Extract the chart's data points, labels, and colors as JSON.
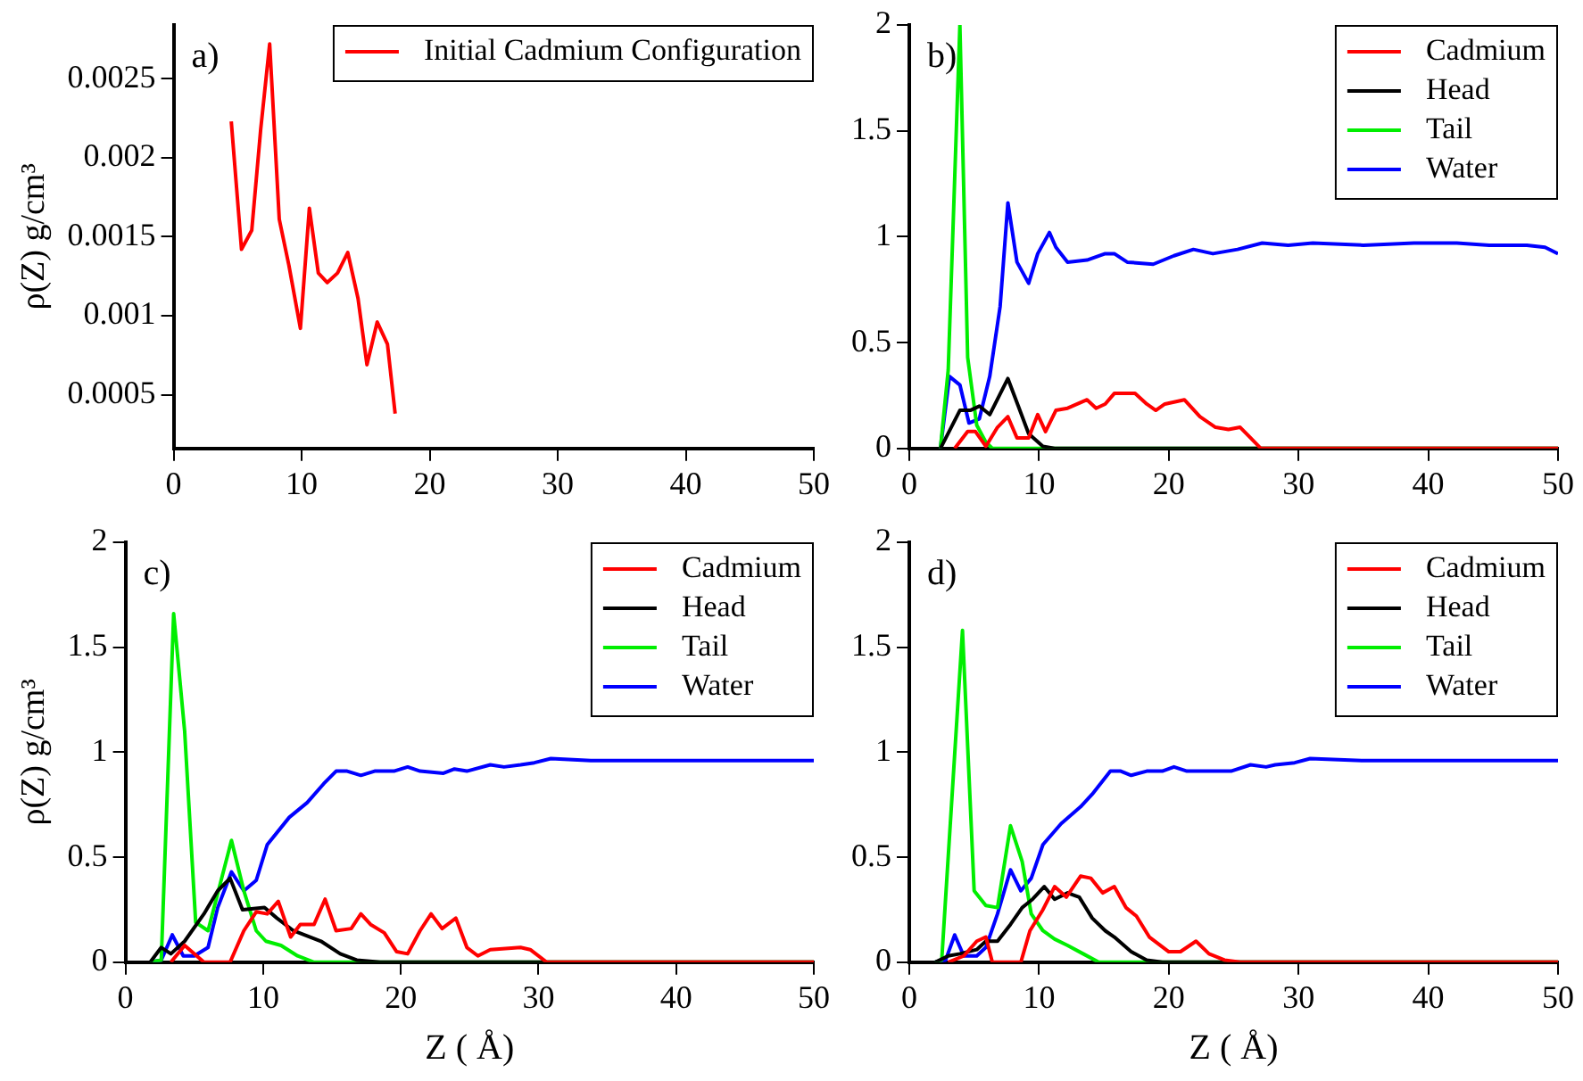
{
  "chart_data": [
    {
      "type": "line",
      "ylabel": "ρ(Z) g/cm³",
      "annotations": [
        "a)"
      ],
      "legend": "top right",
      "grid": false,
      "marker": "none",
      "xlim": [
        0,
        50
      ],
      "xticks": [
        0,
        10,
        20,
        30,
        40,
        50
      ],
      "ylim": [
        0.00016,
        0.00284
      ],
      "yticks": [
        0.0005,
        0.001,
        0.0015,
        0.002,
        0.0025
      ],
      "series": [
        {
          "name": "Initial Cadmium Configuration",
          "color": "#ff0000",
          "x": [
            4.5,
            5.3,
            6.1,
            6.8,
            7.5,
            8.25,
            9.0,
            9.9,
            10.6,
            11.3,
            12.0,
            12.8,
            13.6,
            14.4,
            15.1,
            15.9,
            16.7,
            17.3
          ],
          "values": [
            0.00223,
            0.00142,
            0.00154,
            0.00218,
            0.00272,
            0.00161,
            0.00132,
            0.00092,
            0.00168,
            0.00127,
            0.00121,
            0.00127,
            0.0014,
            0.00111,
            0.00069,
            0.00096,
            0.00082,
            0.00038
          ]
        }
      ]
    },
    {
      "type": "line",
      "annotations": [
        "b)"
      ],
      "legend": "top right",
      "grid": false,
      "marker": "none",
      "xlim": [
        0,
        50
      ],
      "xticks": [
        0,
        10,
        20,
        30,
        40,
        50
      ],
      "ylim": [
        0,
        2
      ],
      "yticks": [
        0,
        0.5,
        1,
        1.5,
        2
      ],
      "series": [
        {
          "name": "Cadmium",
          "color": "#ff0000",
          "x": [
            3.5,
            4.5,
            5.1,
            5.9,
            6.8,
            7.6,
            8.3,
            9.2,
            9.9,
            10.5,
            11.3,
            12.2,
            13.7,
            14.4,
            15.1,
            15.8,
            17.4,
            18.3,
            19.0,
            19.7,
            21.2,
            22.4,
            23.6,
            24.6,
            25.5,
            26.3,
            27.1,
            50
          ],
          "values": [
            0,
            0.08,
            0.08,
            0.01,
            0.1,
            0.15,
            0.05,
            0.05,
            0.16,
            0.08,
            0.18,
            0.19,
            0.23,
            0.19,
            0.21,
            0.26,
            0.26,
            0.21,
            0.18,
            0.21,
            0.23,
            0.15,
            0.1,
            0.09,
            0.1,
            0.05,
            0,
            0
          ]
        },
        {
          "name": "Head",
          "color": "#000000",
          "x": [
            2.4,
            3.9,
            4.7,
            5.4,
            6.2,
            7.6,
            8.4,
            9.2,
            10.3,
            11.2,
            50
          ],
          "values": [
            0,
            0.18,
            0.18,
            0.2,
            0.16,
            0.33,
            0.2,
            0.07,
            0.01,
            0,
            0
          ]
        },
        {
          "name": "Tail",
          "color": "#00ee00",
          "x": [
            2.4,
            3.0,
            3.9,
            4.5,
            5.2,
            5.9,
            6.4,
            50
          ],
          "values": [
            0,
            0.37,
            2.0,
            0.43,
            0.11,
            0.03,
            0,
            0
          ]
        },
        {
          "name": "Water",
          "color": "#0000ff",
          "x": [
            2.4,
            3.1,
            3.9,
            4.6,
            5.4,
            6.2,
            7.0,
            7.6,
            8.3,
            9.2,
            9.9,
            10.8,
            11.3,
            12.2,
            13.7,
            15.1,
            15.8,
            16.8,
            18.8,
            20.4,
            21.9,
            23.4,
            25.3,
            27.2,
            29.2,
            31.1,
            35,
            38.9,
            42.2,
            44.7,
            47.6,
            49,
            50
          ],
          "values": [
            0,
            0.34,
            0.3,
            0.12,
            0.14,
            0.34,
            0.67,
            1.16,
            0.88,
            0.78,
            0.92,
            1.02,
            0.95,
            0.88,
            0.89,
            0.92,
            0.92,
            0.88,
            0.87,
            0.91,
            0.94,
            0.92,
            0.94,
            0.97,
            0.96,
            0.97,
            0.96,
            0.97,
            0.97,
            0.96,
            0.96,
            0.95,
            0.92
          ]
        }
      ]
    },
    {
      "type": "line",
      "xlabel": "Z ( Å)",
      "ylabel": "ρ(Z) g/cm³",
      "annotations": [
        "c)"
      ],
      "legend": "top right",
      "grid": false,
      "marker": "none",
      "xlim": [
        0,
        50
      ],
      "xticks": [
        0,
        10,
        20,
        30,
        40,
        50
      ],
      "ylim": [
        0,
        2
      ],
      "yticks": [
        0,
        0.5,
        1,
        1.5,
        2
      ],
      "series": [
        {
          "name": "Cadmium",
          "color": "#ff0000",
          "x": [
            3.3,
            4.3,
            5.7,
            7.6,
            8.6,
            9.5,
            10.3,
            11.1,
            12.0,
            12.7,
            13.7,
            14.5,
            15.3,
            16.4,
            17.1,
            17.8,
            18.8,
            19.7,
            20.5,
            21.4,
            22.2,
            23.0,
            24.0,
            24.8,
            25.6,
            26.5,
            28.7,
            29.4,
            30.6,
            50
          ],
          "values": [
            0,
            0.08,
            0,
            0,
            0.15,
            0.24,
            0.23,
            0.29,
            0.12,
            0.18,
            0.18,
            0.3,
            0.15,
            0.16,
            0.23,
            0.18,
            0.14,
            0.05,
            0.04,
            0.15,
            0.23,
            0.16,
            0.21,
            0.07,
            0.03,
            0.06,
            0.07,
            0.06,
            0,
            0
          ]
        },
        {
          "name": "Head",
          "color": "#000000",
          "x": [
            1.8,
            2.6,
            3.3,
            4.3,
            5.7,
            6.7,
            7.6,
            8.5,
            10.1,
            11.0,
            12.2,
            14.2,
            15.6,
            16.8,
            18.5,
            50
          ],
          "values": [
            0,
            0.07,
            0.04,
            0.1,
            0.23,
            0.34,
            0.4,
            0.25,
            0.26,
            0.21,
            0.15,
            0.1,
            0.04,
            0.01,
            0,
            0
          ]
        },
        {
          "name": "Tail",
          "color": "#00ee00",
          "x": [
            1.8,
            2.6,
            3.5,
            4.3,
            5.1,
            6.0,
            7.7,
            8.6,
            9.5,
            10.2,
            11.3,
            12.5,
            13.7,
            50
          ],
          "values": [
            0,
            0.01,
            1.66,
            1.1,
            0.19,
            0.15,
            0.58,
            0.34,
            0.15,
            0.1,
            0.08,
            0.03,
            0,
            0
          ]
        },
        {
          "name": "Water",
          "color": "#0000ff",
          "x": [
            1.8,
            2.6,
            3.4,
            4.2,
            5.0,
            6.0,
            6.7,
            7.7,
            8.6,
            9.5,
            10.3,
            11.9,
            13.2,
            14.4,
            15.3,
            16.1,
            17.1,
            18.1,
            19.5,
            20.5,
            21.4,
            23.1,
            23.9,
            24.8,
            26.5,
            27.5,
            28.7,
            29.7,
            30.9,
            33.8,
            36.2,
            38.6,
            41,
            44.4,
            45.9,
            50
          ],
          "values": [
            0,
            0.01,
            0.13,
            0.03,
            0.03,
            0.07,
            0.26,
            0.43,
            0.34,
            0.39,
            0.56,
            0.69,
            0.76,
            0.85,
            0.91,
            0.91,
            0.89,
            0.91,
            0.91,
            0.93,
            0.91,
            0.9,
            0.92,
            0.91,
            0.94,
            0.93,
            0.94,
            0.95,
            0.97,
            0.96,
            0.96,
            0.96,
            0.96,
            0.96,
            0.96,
            0.96
          ]
        }
      ]
    },
    {
      "type": "line",
      "xlabel": "Z ( Å)",
      "annotations": [
        "d)"
      ],
      "legend": "top right",
      "grid": false,
      "marker": "none",
      "xlim": [
        0,
        50
      ],
      "xticks": [
        0,
        10,
        20,
        30,
        40,
        50
      ],
      "ylim": [
        0,
        2
      ],
      "yticks": [
        0,
        0.5,
        1,
        1.5,
        2
      ],
      "series": [
        {
          "name": "Cadmium",
          "color": "#ff0000",
          "x": [
            3,
            4.2,
            5.2,
            5.9,
            6.4,
            8.6,
            9.3,
            10.3,
            11.2,
            12.1,
            13.2,
            14.0,
            14.9,
            15.8,
            16.7,
            17.5,
            18.5,
            20.0,
            20.9,
            22.1,
            23.1,
            24.3,
            25.5,
            50
          ],
          "values": [
            0,
            0.03,
            0.1,
            0.12,
            0,
            0,
            0.15,
            0.25,
            0.36,
            0.31,
            0.41,
            0.4,
            0.33,
            0.36,
            0.26,
            0.22,
            0.12,
            0.05,
            0.05,
            0.1,
            0.04,
            0.01,
            0,
            0
          ]
        },
        {
          "name": "Head",
          "color": "#000000",
          "x": [
            2,
            3.0,
            3.9,
            5.2,
            5.9,
            6.8,
            7.8,
            8.7,
            9.5,
            10.4,
            11.2,
            12.2,
            13.1,
            14.1,
            15.1,
            15.8,
            17.1,
            18.3,
            19.5,
            50
          ],
          "values": [
            0,
            0.03,
            0.04,
            0.06,
            0.1,
            0.1,
            0.18,
            0.26,
            0.3,
            0.36,
            0.3,
            0.33,
            0.31,
            0.21,
            0.15,
            0.12,
            0.05,
            0.01,
            0,
            0
          ]
        },
        {
          "name": "Tail",
          "color": "#00ee00",
          "x": [
            2.0,
            2.5,
            4.1,
            5.0,
            5.9,
            6.8,
            7.8,
            8.7,
            9.4,
            10.3,
            11.2,
            12.2,
            13.4,
            14.6,
            50
          ],
          "values": [
            0,
            0.01,
            1.58,
            0.34,
            0.27,
            0.26,
            0.65,
            0.48,
            0.23,
            0.15,
            0.11,
            0.08,
            0.04,
            0,
            0
          ]
        },
        {
          "name": "Water",
          "color": "#0000ff",
          "x": [
            2,
            2.8,
            3.5,
            4.2,
            5.2,
            5.9,
            6.8,
            7.8,
            8.6,
            9.4,
            10.3,
            11.7,
            13.2,
            14.1,
            15.5,
            16.3,
            17.1,
            18.3,
            19.5,
            20.4,
            21.4,
            23.4,
            24.8,
            26.3,
            27.5,
            28.2,
            29.7,
            30.9,
            35,
            37.4,
            42.2,
            44.7,
            47.1,
            50
          ],
          "values": [
            0,
            0.01,
            0.13,
            0.03,
            0.03,
            0.07,
            0.23,
            0.44,
            0.34,
            0.4,
            0.56,
            0.66,
            0.74,
            0.8,
            0.91,
            0.91,
            0.89,
            0.91,
            0.91,
            0.93,
            0.91,
            0.91,
            0.91,
            0.94,
            0.93,
            0.94,
            0.95,
            0.97,
            0.96,
            0.96,
            0.96,
            0.96,
            0.96,
            0.96
          ]
        }
      ]
    }
  ]
}
